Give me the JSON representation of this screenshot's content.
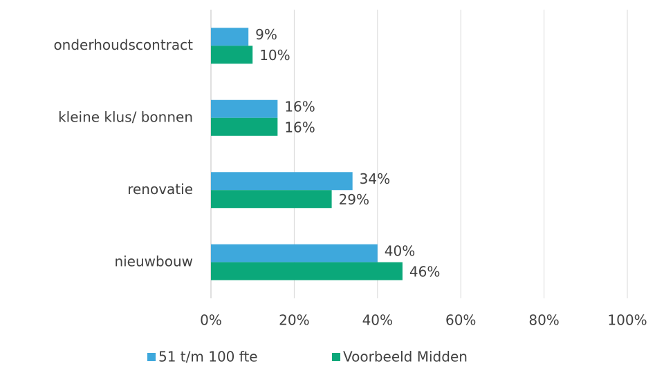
{
  "chart_data": {
    "type": "hbar",
    "categories": [
      "onderhoudscontract",
      "kleine klus/ bonnen",
      "renovatie",
      "nieuwbouw"
    ],
    "series": [
      {
        "name": "51 t/m 100 fte",
        "color": "#3ea8dc",
        "values": [
          9,
          16,
          34,
          40
        ],
        "value_labels": [
          "9%",
          "16%",
          "34%",
          "40%"
        ]
      },
      {
        "name": "Voorbeeld Midden",
        "color": "#0ba87a",
        "values": [
          10,
          16,
          29,
          46
        ],
        "value_labels": [
          "10%",
          "16%",
          "29%",
          "46%"
        ]
      }
    ],
    "xlim": [
      0,
      100
    ],
    "xticks": [
      {
        "value": 0,
        "label": "0%"
      },
      {
        "value": 20,
        "label": "20%"
      },
      {
        "value": 40,
        "label": "40%"
      },
      {
        "value": 60,
        "label": "60%"
      },
      {
        "value": 80,
        "label": "80%"
      },
      {
        "value": 100,
        "label": "100%"
      }
    ],
    "grid": true
  }
}
